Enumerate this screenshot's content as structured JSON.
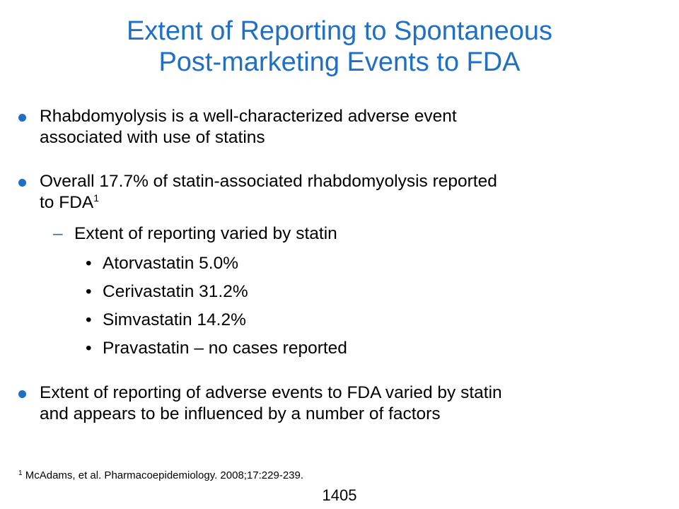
{
  "slide": {
    "title_line1": "Extent of Reporting to Spontaneous",
    "title_line2": "Post-marketing Events to FDA",
    "bullets": [
      {
        "line1": "Rhabdomyolysis is a well-characterized adverse event",
        "line2": "associated with use of statins"
      },
      {
        "line1": "Overall 17.7% of statin-associated rhabdomyolysis reported",
        "line2": "to FDA",
        "ref": "1"
      },
      {
        "line1": "Extent of reporting of adverse events to FDA varied by statin",
        "line2": "and appears to be influenced by a number of factors"
      }
    ],
    "sub_bullet": {
      "marker": "–",
      "text": "Extent of reporting varied by statin"
    },
    "sub_sub_marker": "•",
    "sub_sub_bullets": [
      "Atorvastatin 5.0%",
      "Cerivastatin 31.2%",
      "Simvastatin 14.2%",
      "Pravastatin – no cases reported"
    ],
    "footnote": {
      "ref": "1",
      "text": "McAdams, et al. Pharmacoepidemiology. 2008;17:229-239."
    },
    "page_number": "1405"
  },
  "colors": {
    "accent": "#1f6fc5",
    "text": "#000000",
    "background": "#ffffff"
  }
}
